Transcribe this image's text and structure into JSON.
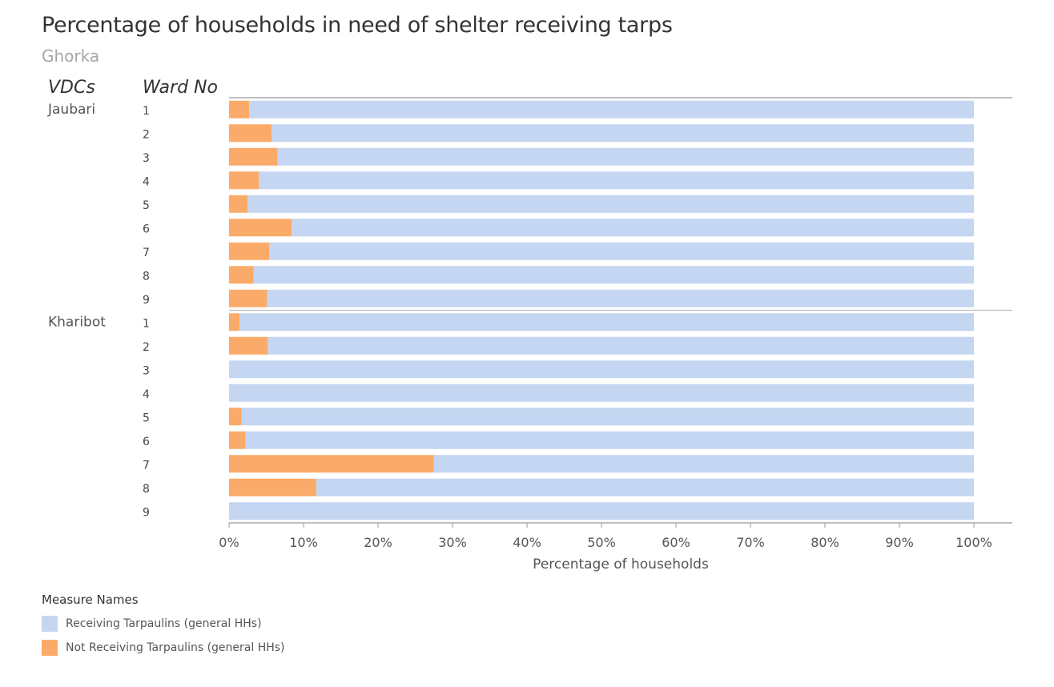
{
  "title": "Percentage of households in need of shelter receiving tarps",
  "subtitle": "Ghorka",
  "colors": {
    "receiving": "#c4d6f2",
    "not_receiving": "#fbab69"
  },
  "legend": {
    "title": "Measure Names",
    "items": [
      {
        "label": "Receiving Tarpaulins (general HHs)",
        "color": "#c4d6f2"
      },
      {
        "label": "Not Receiving Tarpaulins (general HHs)",
        "color": "#fbab69"
      }
    ]
  },
  "chart_data": {
    "type": "bar",
    "orientation": "horizontal",
    "stacked": true,
    "row_headers": [
      "VDCs",
      "Ward No"
    ],
    "xlabel": "Percentage of households",
    "xlim": [
      0,
      100
    ],
    "xticks": [
      "0%",
      "10%",
      "20%",
      "30%",
      "40%",
      "50%",
      "60%",
      "70%",
      "80%",
      "90%",
      "100%"
    ],
    "groups": [
      {
        "name": "Jaubari",
        "wards": [
          "1",
          "2",
          "3",
          "4",
          "5",
          "6",
          "7",
          "8",
          "9"
        ],
        "series": [
          {
            "name": "Not Receiving Tarpaulins (general HHs)",
            "values": [
              2.7,
              5.7,
              6.5,
              4.0,
              2.5,
              8.4,
              5.4,
              3.3,
              5.1
            ]
          },
          {
            "name": "Receiving Tarpaulins (general HHs)",
            "values": [
              97.3,
              94.3,
              93.5,
              96.0,
              97.5,
              91.6,
              94.6,
              96.7,
              94.9
            ]
          }
        ]
      },
      {
        "name": "Kharibot",
        "wards": [
          "1",
          "2",
          "3",
          "4",
          "5",
          "6",
          "7",
          "8",
          "9"
        ],
        "series": [
          {
            "name": "Not Receiving Tarpaulins (general HHs)",
            "values": [
              1.4,
              5.2,
              0,
              0,
              1.7,
              2.2,
              27.5,
              11.7,
              0
            ]
          },
          {
            "name": "Receiving Tarpaulins (general HHs)",
            "values": [
              98.6,
              94.8,
              100,
              100,
              98.3,
              97.8,
              72.5,
              88.3,
              100
            ]
          }
        ]
      }
    ]
  }
}
